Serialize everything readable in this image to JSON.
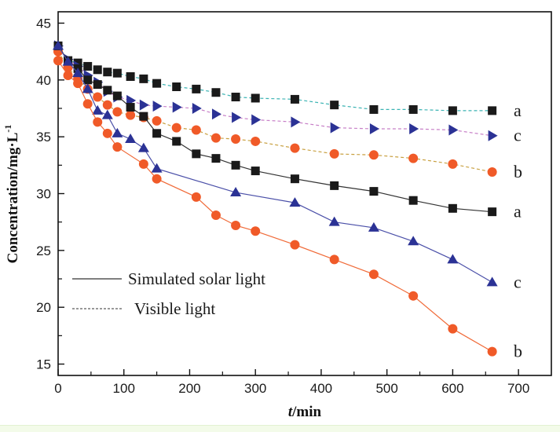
{
  "chart_data": {
    "type": "line",
    "title": "",
    "xlabel_italic": "t",
    "xlabel_rest": "/min",
    "ylabel": "Concentration/mg·L",
    "ylabel_sup": "-1",
    "xlim": [
      0,
      750
    ],
    "ylim": [
      14,
      46
    ],
    "xticks": [
      0,
      100,
      200,
      300,
      400,
      500,
      600,
      700
    ],
    "xticks_minor": [
      50,
      150,
      250,
      350,
      450,
      550,
      650
    ],
    "yticks": [
      15,
      20,
      25,
      30,
      35,
      40,
      45
    ],
    "yticks_minor": [
      17.5,
      22.5,
      27.5,
      32.5,
      37.5,
      42.5
    ],
    "grid": false,
    "legend": {
      "placement": "lower-left",
      "entries": [
        {
          "label": "Simulated solar light",
          "style": "solid"
        },
        {
          "label": "Visible light",
          "style": "dashed"
        }
      ]
    },
    "series": [
      {
        "name": "a (visible light)",
        "label": "a",
        "line": "dashed",
        "marker": "square",
        "marker_color": "#1a1a1a",
        "line_color": "#3bb3b3",
        "x": [
          0,
          15,
          30,
          45,
          60,
          75,
          90,
          110,
          130,
          150,
          180,
          210,
          240,
          270,
          300,
          360,
          420,
          480,
          540,
          600,
          660
        ],
        "y": [
          43.0,
          41.7,
          41.5,
          41.2,
          40.9,
          40.7,
          40.6,
          40.3,
          40.1,
          39.7,
          39.4,
          39.2,
          38.9,
          38.5,
          38.4,
          38.3,
          37.8,
          37.4,
          37.4,
          37.3,
          37.3
        ]
      },
      {
        "name": "c (visible light)",
        "label": "c",
        "line": "dashed",
        "marker": "triangle-right",
        "marker_color": "#2b3295",
        "line_color": "#c77fc7",
        "x": [
          0,
          15,
          30,
          45,
          60,
          75,
          90,
          110,
          130,
          150,
          180,
          210,
          240,
          270,
          300,
          360,
          420,
          480,
          540,
          600,
          660
        ],
        "y": [
          43.0,
          41.8,
          41.2,
          40.4,
          39.8,
          39.0,
          38.5,
          38.2,
          37.8,
          37.7,
          37.6,
          37.5,
          37.0,
          36.7,
          36.5,
          36.3,
          35.8,
          35.7,
          35.7,
          35.6,
          35.1
        ]
      },
      {
        "name": "b (visible light)",
        "label": "b",
        "line": "dashed",
        "marker": "circle",
        "marker_color": "#f05a28",
        "line_color": "#c8a040",
        "x": [
          0,
          15,
          30,
          45,
          60,
          75,
          90,
          110,
          130,
          150,
          180,
          210,
          240,
          270,
          300,
          360,
          420,
          480,
          540,
          600,
          660
        ],
        "y": [
          42.5,
          41.1,
          40.1,
          39.2,
          38.5,
          37.8,
          37.2,
          36.9,
          36.7,
          36.4,
          35.8,
          35.6,
          34.9,
          34.8,
          34.6,
          34.0,
          33.5,
          33.4,
          33.1,
          32.6,
          31.9
        ]
      },
      {
        "name": "a (simulated solar light)",
        "label": "a",
        "line": "solid",
        "marker": "square",
        "marker_color": "#1a1a1a",
        "line_color": "#333333",
        "x": [
          0,
          15,
          30,
          45,
          60,
          75,
          90,
          110,
          130,
          150,
          180,
          210,
          240,
          270,
          300,
          360,
          420,
          480,
          540,
          600,
          660
        ],
        "y": [
          43.0,
          41.7,
          41.0,
          40.0,
          39.6,
          39.1,
          38.6,
          37.6,
          36.8,
          35.3,
          34.6,
          33.5,
          33.1,
          32.5,
          32.0,
          31.3,
          30.7,
          30.2,
          29.4,
          28.7,
          28.4
        ]
      },
      {
        "name": "c (simulated solar light)",
        "label": "c",
        "line": "solid",
        "marker": "triangle-up",
        "marker_color": "#2b3295",
        "line_color": "#4a4fa8",
        "x": [
          0,
          15,
          30,
          45,
          60,
          75,
          90,
          110,
          130,
          150,
          270,
          360,
          420,
          480,
          540,
          600,
          660
        ],
        "y": [
          43.0,
          41.6,
          40.6,
          39.2,
          37.3,
          36.9,
          35.3,
          34.8,
          34.0,
          32.2,
          30.1,
          29.2,
          27.5,
          27.0,
          25.8,
          24.2,
          22.2
        ]
      },
      {
        "name": "b (simulated solar light)",
        "label": "b",
        "line": "solid",
        "marker": "circle",
        "marker_color": "#f05a28",
        "line_color": "#f06a38",
        "x": [
          0,
          15,
          30,
          45,
          60,
          75,
          90,
          130,
          150,
          210,
          240,
          270,
          300,
          360,
          420,
          480,
          540,
          600,
          660
        ],
        "y": [
          41.7,
          40.4,
          39.7,
          37.9,
          36.3,
          35.3,
          34.1,
          32.6,
          31.3,
          29.7,
          28.1,
          27.2,
          26.7,
          25.5,
          24.2,
          22.9,
          21.0,
          18.1,
          16.1
        ]
      }
    ]
  }
}
